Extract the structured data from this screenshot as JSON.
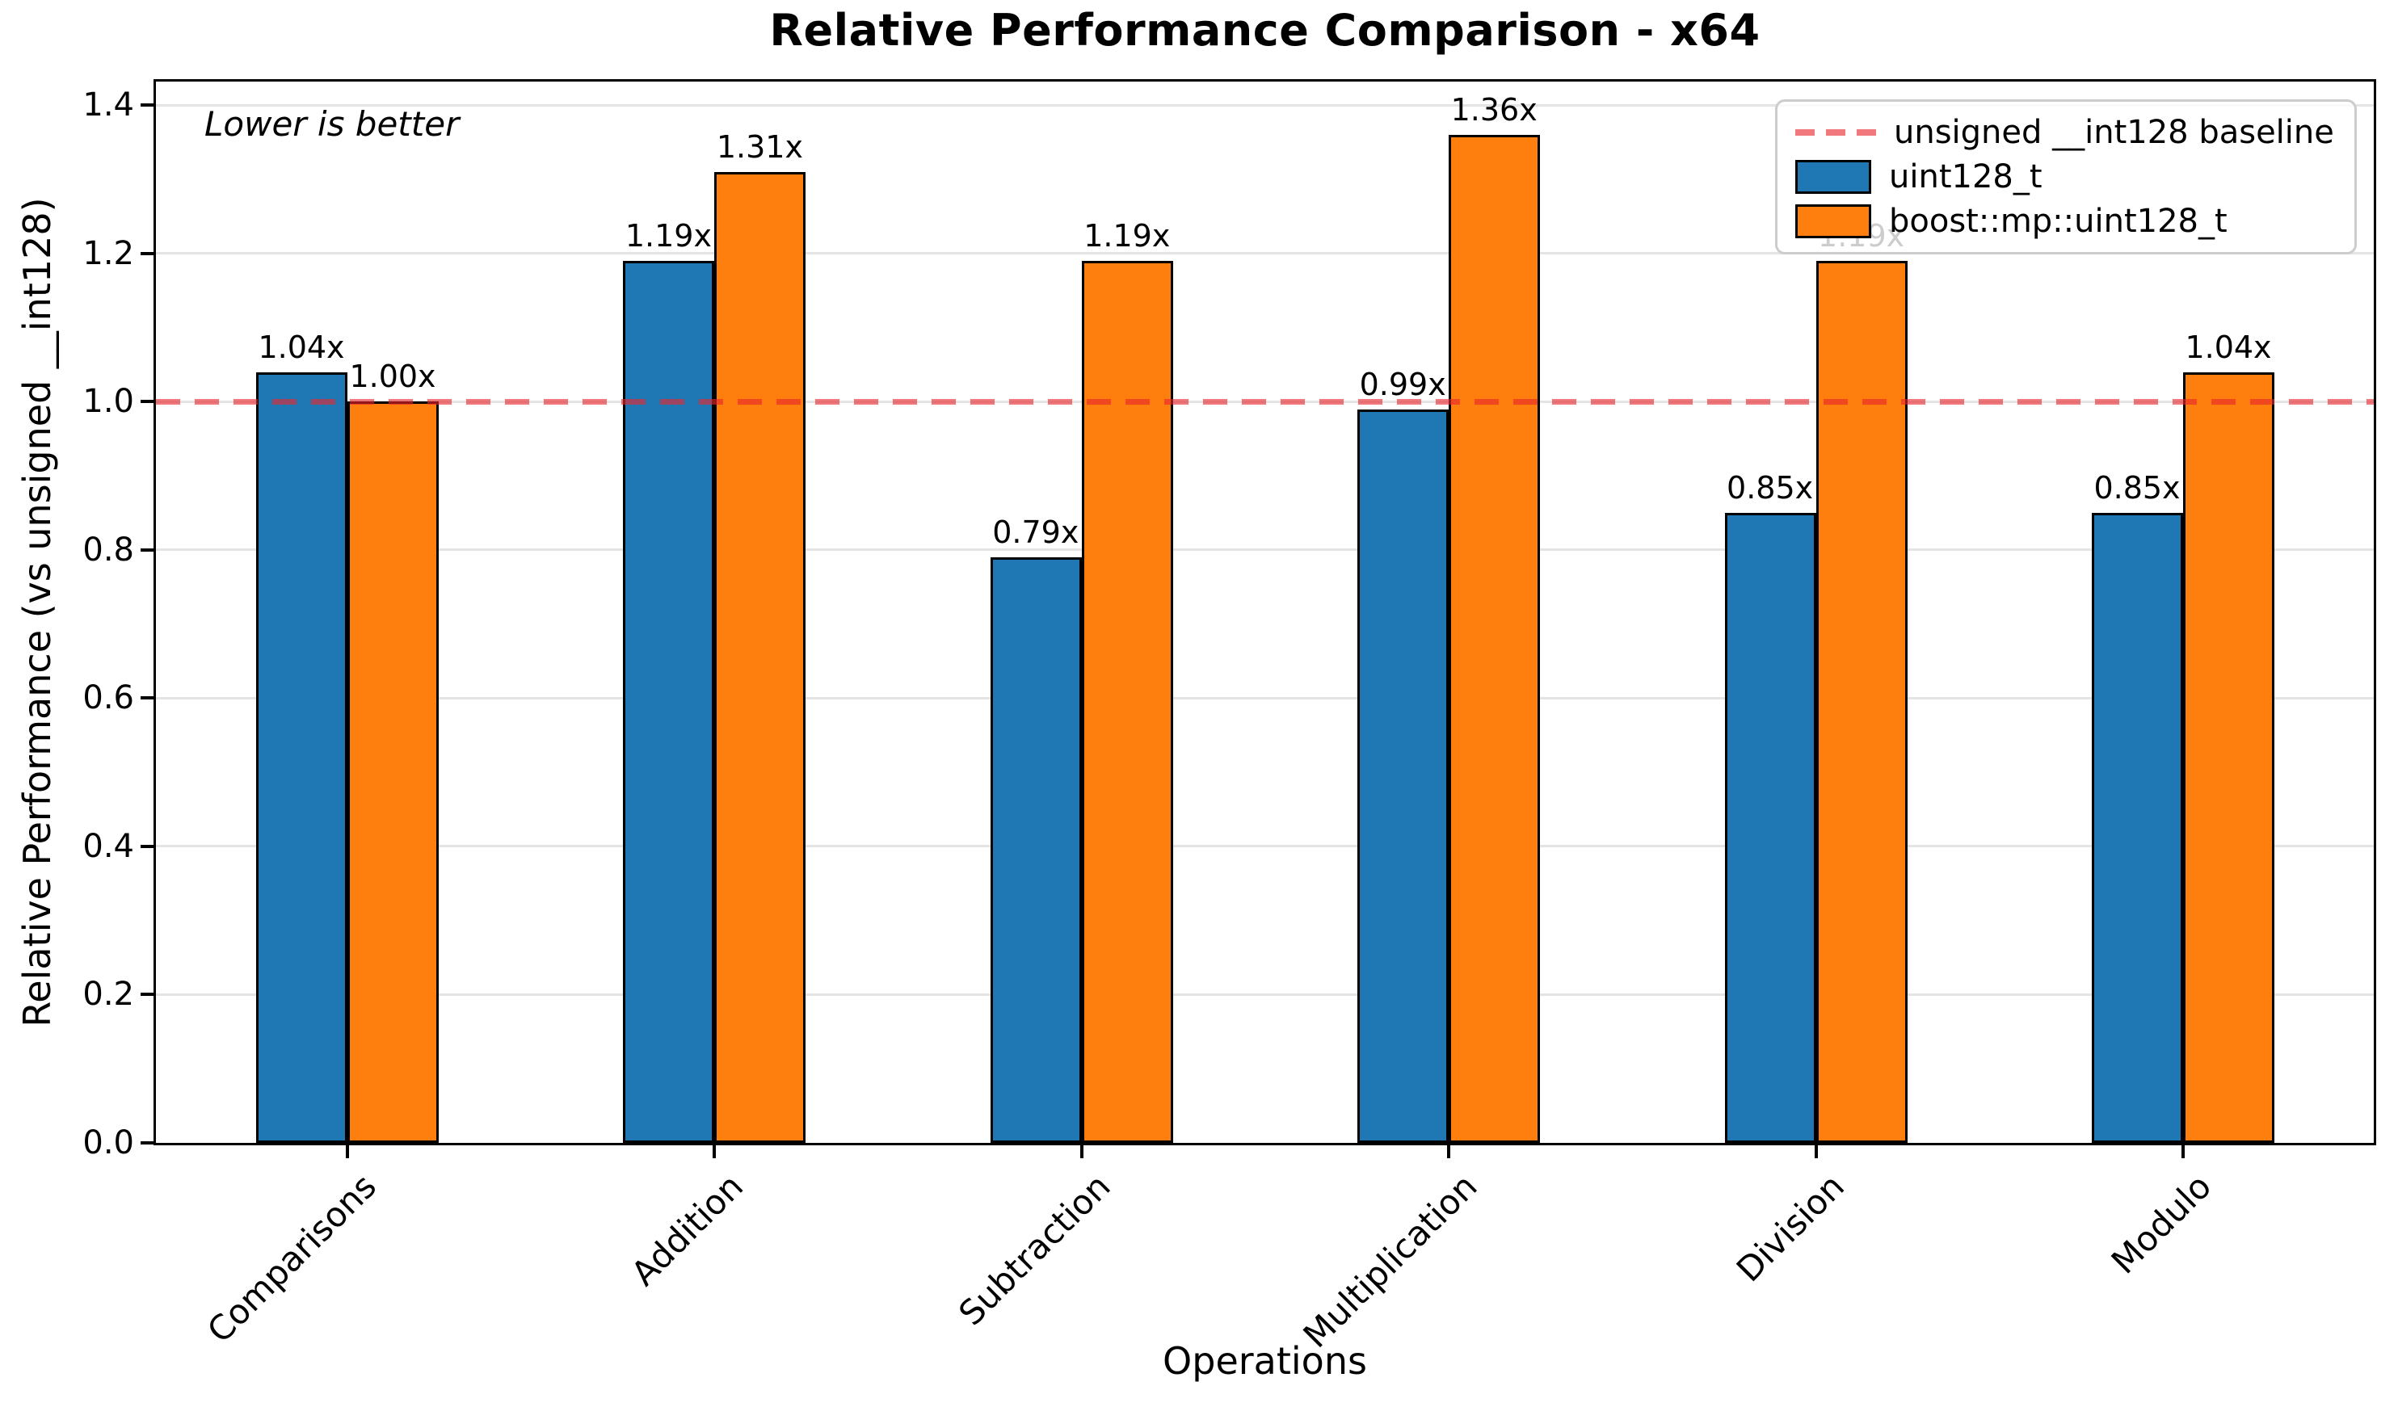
{
  "chart_data": {
    "type": "bar",
    "title": "Relative Performance Comparison - x64",
    "xlabel": "Operations",
    "ylabel": "Relative Performance (vs unsigned __int128)",
    "annotation": "Lower is better",
    "categories": [
      "Comparisons",
      "Addition",
      "Subtraction",
      "Multiplication",
      "Division",
      "Modulo"
    ],
    "series": [
      {
        "name": "uint128_t",
        "color": "#1f77b4",
        "values": [
          1.04,
          1.19,
          0.79,
          0.99,
          0.85,
          0.85
        ]
      },
      {
        "name": "boost::mp::uint128_t",
        "color": "#ff7f0e",
        "values": [
          1.0,
          1.31,
          1.19,
          1.36,
          1.19,
          1.04
        ]
      }
    ],
    "bar_label_suffix": "x",
    "baseline": {
      "value": 1.0,
      "label": "unsigned __int128 baseline",
      "color": "#e8252c",
      "style": "dashed"
    },
    "ylim": [
      0,
      1.432
    ],
    "yticks": [
      0.0,
      0.2,
      0.4,
      0.6,
      0.8,
      1.0,
      1.2,
      1.4
    ],
    "grid": true,
    "legend_position": "upper right"
  }
}
